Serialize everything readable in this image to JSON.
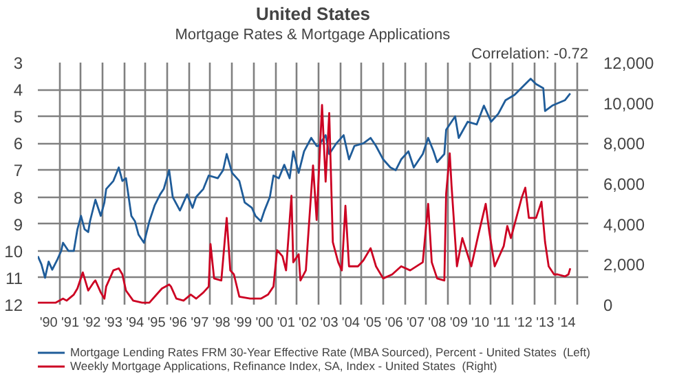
{
  "chart_data": {
    "type": "line",
    "title": "United States",
    "subtitle": "Mortgage Rates & Mortgage Applications",
    "annotations": [
      "Correlation: -0.72"
    ],
    "xlim": [
      "1990-01",
      "2015-07"
    ],
    "xticks": [
      {
        "value": "1990-07",
        "label": "'90"
      },
      {
        "value": "1991-01",
        "label": null
      },
      {
        "value": "1991-07",
        "label": "'91"
      },
      {
        "value": "1992-01",
        "label": null
      },
      {
        "value": "1992-07",
        "label": "'92"
      },
      {
        "value": "1993-01",
        "label": null
      },
      {
        "value": "1993-07",
        "label": "'93"
      },
      {
        "value": "1994-01",
        "label": null
      },
      {
        "value": "1994-07",
        "label": "'94"
      },
      {
        "value": "1995-01",
        "label": null
      },
      {
        "value": "1995-07",
        "label": "'95"
      },
      {
        "value": "1996-01",
        "label": null
      },
      {
        "value": "1996-07",
        "label": "'96"
      },
      {
        "value": "1997-01",
        "label": null
      },
      {
        "value": "1997-07",
        "label": "'97"
      },
      {
        "value": "1998-01",
        "label": null
      },
      {
        "value": "1998-07",
        "label": "'98"
      },
      {
        "value": "1999-01",
        "label": null
      },
      {
        "value": "1999-07",
        "label": "'99"
      },
      {
        "value": "2000-01",
        "label": null
      },
      {
        "value": "2000-07",
        "label": "'00"
      },
      {
        "value": "2001-01",
        "label": null
      },
      {
        "value": "2001-07",
        "label": "'01"
      },
      {
        "value": "2002-01",
        "label": null
      },
      {
        "value": "2002-07",
        "label": "'02"
      },
      {
        "value": "2003-01",
        "label": null
      },
      {
        "value": "2003-07",
        "label": "'03"
      },
      {
        "value": "2004-01",
        "label": null
      },
      {
        "value": "2004-07",
        "label": "'04"
      },
      {
        "value": "2005-01",
        "label": null
      },
      {
        "value": "2005-07",
        "label": "'05"
      },
      {
        "value": "2006-01",
        "label": null
      },
      {
        "value": "2006-07",
        "label": "'06"
      },
      {
        "value": "2007-01",
        "label": null
      },
      {
        "value": "2007-07",
        "label": "'07"
      },
      {
        "value": "2008-01",
        "label": null
      },
      {
        "value": "2008-07",
        "label": "'08"
      },
      {
        "value": "2009-01",
        "label": null
      },
      {
        "value": "2009-07",
        "label": "'09"
      },
      {
        "value": "2010-01",
        "label": null
      },
      {
        "value": "2010-07",
        "label": "'10"
      },
      {
        "value": "2011-01",
        "label": null
      },
      {
        "value": "2011-07",
        "label": "'11"
      },
      {
        "value": "2012-01",
        "label": null
      },
      {
        "value": "2012-07",
        "label": "'12"
      },
      {
        "value": "2013-01",
        "label": null
      },
      {
        "value": "2013-07",
        "label": "'13"
      },
      {
        "value": "2014-01",
        "label": null
      },
      {
        "value": "2014-07",
        "label": "'14"
      },
      {
        "value": "2015-01",
        "label": null
      }
    ],
    "ylim": [
      12,
      3
    ],
    "yticks": [
      3,
      4,
      5,
      6,
      7,
      8,
      9,
      10,
      11,
      12
    ],
    "y2lim": [
      0,
      12000
    ],
    "y2ticks": [
      0,
      {
        "value": 2000,
        "label": "2,000"
      },
      {
        "value": 4000,
        "label": "4,000"
      },
      {
        "value": 6000,
        "label": "6,000"
      },
      {
        "value": 8000,
        "label": "8,000"
      },
      {
        "value": 10000,
        "label": "10,000"
      },
      {
        "value": 12000,
        "label": "12,000"
      }
    ],
    "grid": true,
    "legend": "bottom",
    "line_style": "solid",
    "marker": "none",
    "series": [
      {
        "name": "Mortgage Lending Rates FRM 30-Year Effective Rate (MBA Sourced), Percent - United States  (Left)",
        "color": "#1f5c99",
        "x": [
          "1990-01",
          "1990-03",
          "1990-05",
          "1990-07",
          "1990-09",
          "1990-12",
          "1991-02",
          "1991-03",
          "1991-06",
          "1991-09",
          "1991-11",
          "1992-01",
          "1992-03",
          "1992-05",
          "1992-06",
          "1992-09",
          "1992-12",
          "1993-02",
          "1993-03",
          "1993-07",
          "1993-10",
          "1993-12",
          "1994-02",
          "1994-05",
          "1994-07",
          "1994-09",
          "1994-12",
          "1995-03",
          "1995-06",
          "1995-09",
          "1995-11",
          "1996-02",
          "1996-04",
          "1996-08",
          "1996-10",
          "1996-12",
          "1997-03",
          "1997-05",
          "1997-09",
          "1997-12",
          "1998-05",
          "1998-08",
          "1998-10",
          "1999-01",
          "1999-05",
          "1999-08",
          "1999-12",
          "2000-02",
          "2000-05",
          "2000-07",
          "2000-10",
          "2000-12",
          "2001-03",
          "2001-06",
          "2001-09",
          "2001-11",
          "2002-02",
          "2002-05",
          "2002-09",
          "2002-12",
          "2003-01",
          "2003-05",
          "2003-07",
          "2003-11",
          "2004-03",
          "2004-06",
          "2004-09",
          "2005-02",
          "2005-06",
          "2005-09",
          "2006-01",
          "2006-05",
          "2006-08",
          "2006-11",
          "2007-03",
          "2007-06",
          "2007-11",
          "2008-02",
          "2008-05",
          "2008-07",
          "2008-11",
          "2008-12",
          "2009-05",
          "2009-07",
          "2009-12",
          "2010-05",
          "2010-09",
          "2011-01",
          "2011-05",
          "2011-09",
          "2012-02",
          "2012-11",
          "2013-02",
          "2013-06",
          "2013-07",
          "2013-11",
          "2014-06",
          "2014-09"
        ],
        "values": [
          10.2,
          10.5,
          11.0,
          10.4,
          10.7,
          10.3,
          10.0,
          9.7,
          10.0,
          10.0,
          9.2,
          8.7,
          9.2,
          9.3,
          8.9,
          8.1,
          8.7,
          8.2,
          7.7,
          7.4,
          6.9,
          7.4,
          7.3,
          8.7,
          8.9,
          9.4,
          9.7,
          8.9,
          8.3,
          7.9,
          7.7,
          7.0,
          8.0,
          8.5,
          8.2,
          7.9,
          8.4,
          8.0,
          7.7,
          7.2,
          7.3,
          7.0,
          6.4,
          7.1,
          7.4,
          8.2,
          8.4,
          8.7,
          8.9,
          8.5,
          8.0,
          7.2,
          7.3,
          6.8,
          7.3,
          6.3,
          7.1,
          6.3,
          5.8,
          6.1,
          6.1,
          5.7,
          6.4,
          6.0,
          5.7,
          6.6,
          6.1,
          6.0,
          5.8,
          6.1,
          6.6,
          6.9,
          7.0,
          6.6,
          6.3,
          6.9,
          6.4,
          5.8,
          6.3,
          6.7,
          6.4,
          5.5,
          5.0,
          5.8,
          5.2,
          5.3,
          4.6,
          5.2,
          4.9,
          4.4,
          4.2,
          3.6,
          3.8,
          3.95,
          4.8,
          4.6,
          4.4,
          4.15
        ]
      },
      {
        "name": "Weekly Mortgage Applications, Refinance Index, SA, Index - United States  (Right)",
        "color": "#cc0022",
        "axis": "y2",
        "x": [
          "1990-01",
          "1990-11",
          "1991-03",
          "1991-05",
          "1991-09",
          "1991-11",
          "1992-02",
          "1992-03",
          "1992-05",
          "1992-08",
          "1992-09",
          "1992-12",
          "1993-02",
          "1993-03",
          "1993-07",
          "1993-10",
          "1993-12",
          "1994-02",
          "1994-06",
          "1994-11",
          "1995-03",
          "1995-06",
          "1995-10",
          "1996-02",
          "1996-03",
          "1996-06",
          "1996-10",
          "1997-02",
          "1997-05",
          "1997-09",
          "1997-12",
          "1998-01",
          "1998-03",
          "1998-07",
          "1998-10",
          "1998-12",
          "1999-02",
          "1999-05",
          "1999-11",
          "2000-05",
          "2000-09",
          "2000-12",
          "2001-02",
          "2001-05",
          "2001-07",
          "2001-10",
          "2001-11",
          "2002-02",
          "2002-03",
          "2002-06",
          "2002-08",
          "2002-10",
          "2002-12",
          "2003-03",
          "2003-05",
          "2003-07",
          "2003-09",
          "2003-12",
          "2004-02",
          "2004-04",
          "2004-06",
          "2004-11",
          "2005-02",
          "2005-06",
          "2005-09",
          "2006-01",
          "2006-06",
          "2006-11",
          "2007-04",
          "2007-11",
          "2008-02",
          "2008-04",
          "2008-07",
          "2008-11",
          "2008-12",
          "2009-02",
          "2009-03",
          "2009-06",
          "2009-09",
          "2010-02",
          "2010-06",
          "2010-10",
          "2010-12",
          "2011-03",
          "2011-08",
          "2011-10",
          "2011-12",
          "2012-03",
          "2012-06",
          "2012-08",
          "2012-10",
          "2013-02",
          "2013-05",
          "2013-07",
          "2013-09",
          "2013-12",
          "2014-02",
          "2014-06",
          "2014-08",
          "2014-09"
        ],
        "values": [
          100,
          100,
          300,
          200,
          500,
          800,
          1600,
          1300,
          700,
          1100,
          1200,
          600,
          300,
          900,
          1700,
          1800,
          1500,
          700,
          200,
          100,
          100,
          400,
          800,
          1000,
          900,
          300,
          200,
          500,
          300,
          600,
          900,
          3000,
          1300,
          1200,
          4300,
          1700,
          1500,
          400,
          300,
          300,
          500,
          900,
          2700,
          2400,
          1700,
          5400,
          2100,
          2500,
          1200,
          1700,
          4300,
          6900,
          4200,
          9900,
          6100,
          9500,
          3100,
          2100,
          1700,
          4900,
          1900,
          1900,
          2200,
          2800,
          1900,
          1300,
          1500,
          1900,
          1700,
          2100,
          5000,
          2100,
          1300,
          1200,
          5500,
          7500,
          5900,
          1900,
          3300,
          1900,
          3500,
          5000,
          3600,
          1900,
          2900,
          3900,
          3300,
          4300,
          5300,
          5800,
          4300,
          4300,
          5100,
          3100,
          1900,
          1500,
          1500,
          1400,
          1500,
          1800
        ]
      }
    ]
  }
}
